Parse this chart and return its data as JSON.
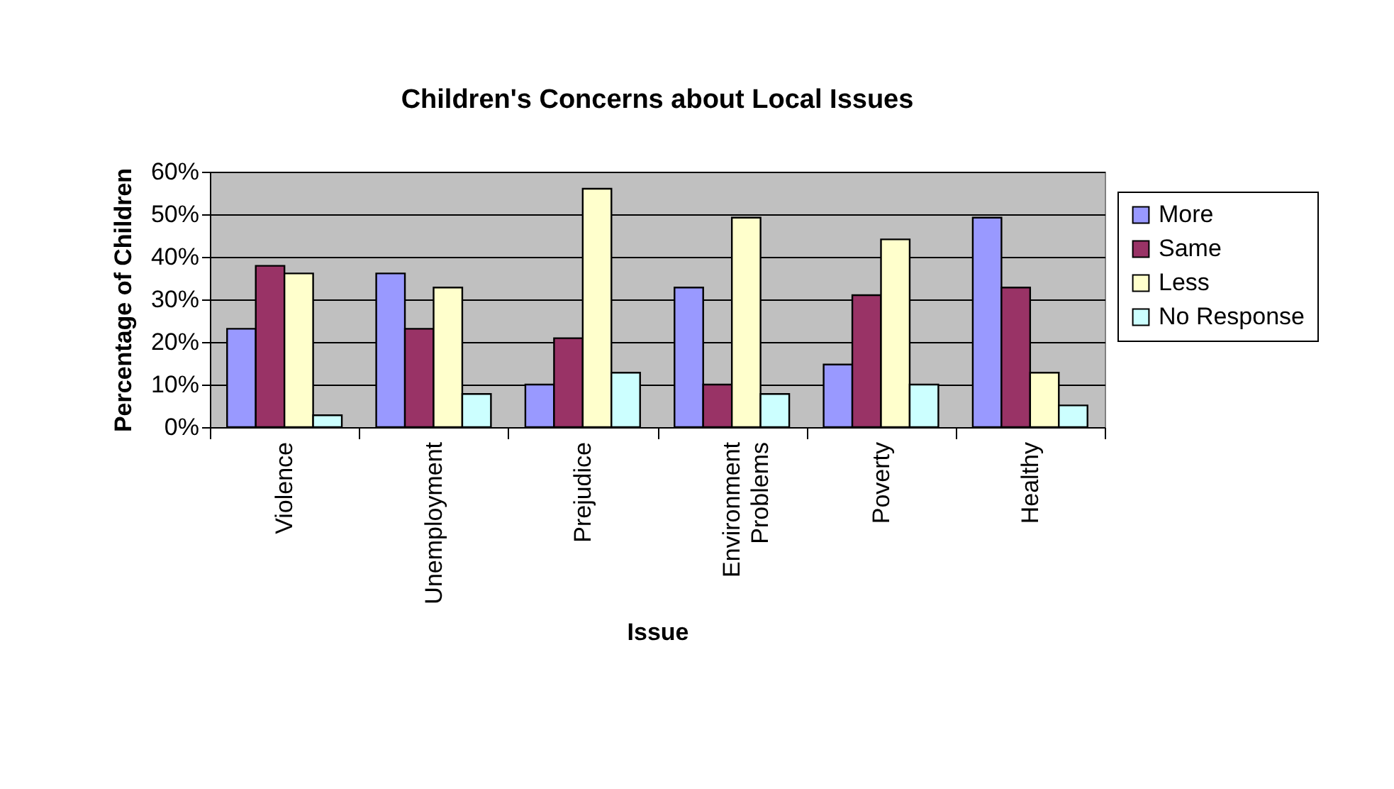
{
  "chart_data": {
    "type": "bar",
    "title": "Children's Concerns about Local Issues",
    "xlabel": "Issue",
    "ylabel": "Percentage of Children",
    "categories": [
      "Violence",
      "Unemployment",
      "Prejudice",
      "Environment Problems",
      "Poverty",
      "Healthy"
    ],
    "series": [
      {
        "name": "More",
        "color": "#9999ff",
        "values": [
          23.1,
          36.1,
          10,
          32.8,
          14.7,
          49.2
        ]
      },
      {
        "name": "Same",
        "color": "#993366",
        "values": [
          37.9,
          23.1,
          20.9,
          10,
          31,
          32.8
        ]
      },
      {
        "name": "Less",
        "color": "#ffffcc",
        "values": [
          36.1,
          32.8,
          56,
          49.2,
          44.1,
          12.8
        ]
      },
      {
        "name": "No Response",
        "color": "#ccffff",
        "values": [
          2.8,
          7.8,
          12.8,
          7.8,
          10,
          5.1
        ]
      }
    ],
    "ylim": [
      0,
      60
    ],
    "yticks": [
      {
        "value": 0,
        "label": "0%"
      },
      {
        "value": 10,
        "label": "10%"
      },
      {
        "value": 20,
        "label": "20%"
      },
      {
        "value": 30,
        "label": "30%"
      },
      {
        "value": 40,
        "label": "40%"
      },
      {
        "value": 50,
        "label": "50%"
      },
      {
        "value": 60,
        "label": "60%"
      }
    ],
    "grid": "y",
    "legend": "right"
  }
}
